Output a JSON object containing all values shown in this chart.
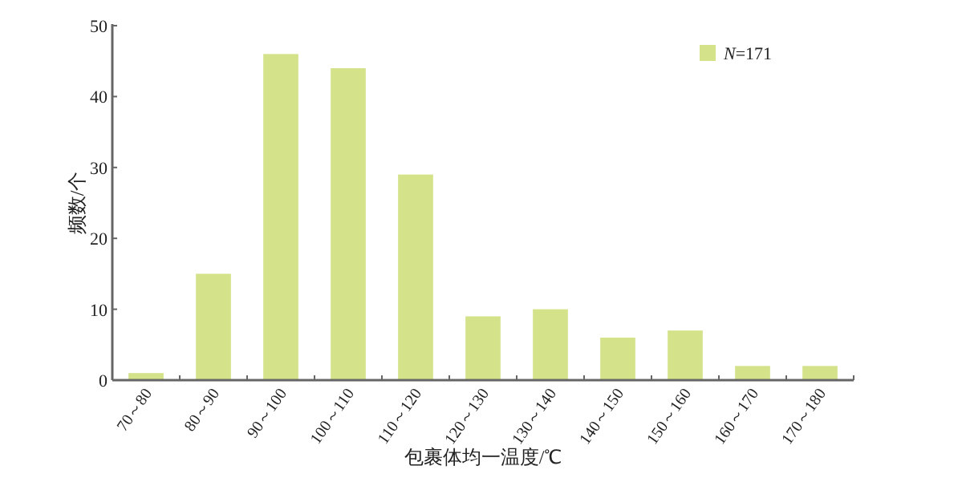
{
  "chart_data": {
    "type": "bar",
    "xlabel": "包裹体均一温度/℃",
    "ylabel": "频数/个",
    "categories": [
      "70～80",
      "80～90",
      "90～100",
      "100～110",
      "110～120",
      "120～130",
      "130～140",
      "140～150",
      "150～160",
      "160～170",
      "170～180"
    ],
    "series": [
      {
        "name": "*N*=171",
        "color": "#d4e289",
        "values": [
          1,
          15,
          46,
          44,
          29,
          9,
          10,
          6,
          7,
          2,
          2
        ]
      }
    ],
    "ylim": [
      0,
      50
    ],
    "yticks": [
      0,
      10,
      20,
      30,
      40,
      50
    ],
    "legend": "top right"
  }
}
